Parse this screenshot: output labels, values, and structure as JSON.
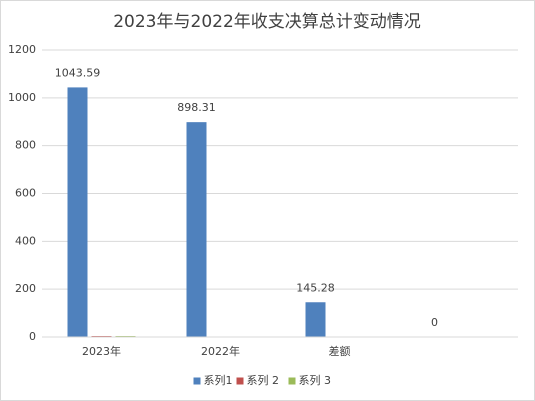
{
  "chart_data": {
    "type": "bar",
    "title": "2023年与2022年收支决算总计变动情况",
    "categories": [
      "2023年",
      "2022年",
      "差额",
      null
    ],
    "series": [
      {
        "name": "系列1",
        "color": "#4f81bd",
        "values": [
          1043.59,
          898.31,
          145.28,
          0
        ],
        "data_labels": true
      },
      {
        "name": "系列 2",
        "color": "#c0504d",
        "values": [
          4,
          null,
          null,
          null
        ]
      },
      {
        "name": "系列 3",
        "color": "#9bbb59",
        "values": [
          4,
          null,
          null,
          null
        ]
      }
    ],
    "ylim": [
      0,
      1200
    ],
    "yticks": [
      0,
      200,
      400,
      600,
      800,
      1000,
      1200
    ],
    "grid": true,
    "legend": "bottom"
  }
}
